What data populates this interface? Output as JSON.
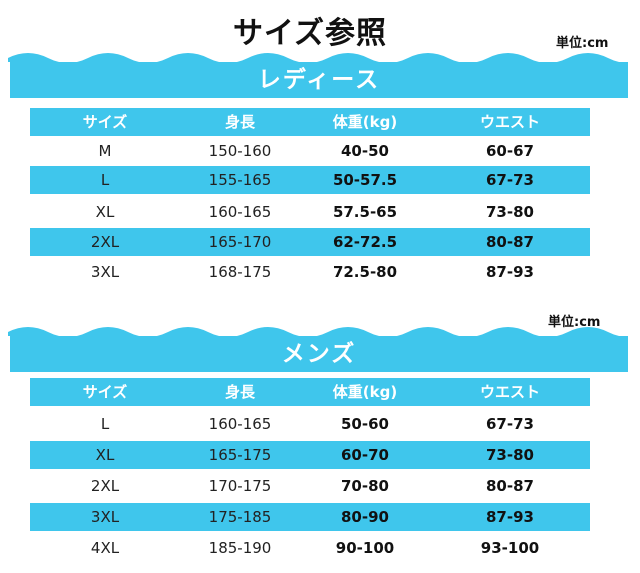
{
  "title": "サイズ参照",
  "unit_label": "単位:cm",
  "colors": {
    "accent": "#3fc6ec",
    "wave": "#3fc6ec"
  },
  "ladies": {
    "heading": "レディース",
    "headers": [
      "サイズ",
      "身長",
      "体重(kg)",
      "ウエスト"
    ],
    "rows": [
      [
        "M",
        "150-160",
        "40-50",
        "60-67"
      ],
      [
        "L",
        "155-165",
        "50-57.5",
        "67-73"
      ],
      [
        "XL",
        "160-165",
        "57.5-65",
        "73-80"
      ],
      [
        "2XL",
        "165-170",
        "62-72.5",
        "80-87"
      ],
      [
        "3XL",
        "168-175",
        "72.5-80",
        "87-93"
      ]
    ]
  },
  "mens": {
    "heading": "メンズ",
    "headers": [
      "サイズ",
      "身長",
      "体重(kg)",
      "ウエスト"
    ],
    "rows": [
      [
        "L",
        "160-165",
        "50-60",
        "67-73"
      ],
      [
        "XL",
        "165-175",
        "60-70",
        "73-80"
      ],
      [
        "2XL",
        "170-175",
        "70-80",
        "80-87"
      ],
      [
        "3XL",
        "175-185",
        "80-90",
        "87-93"
      ],
      [
        "4XL",
        "185-190",
        "90-100",
        "93-100"
      ]
    ]
  }
}
